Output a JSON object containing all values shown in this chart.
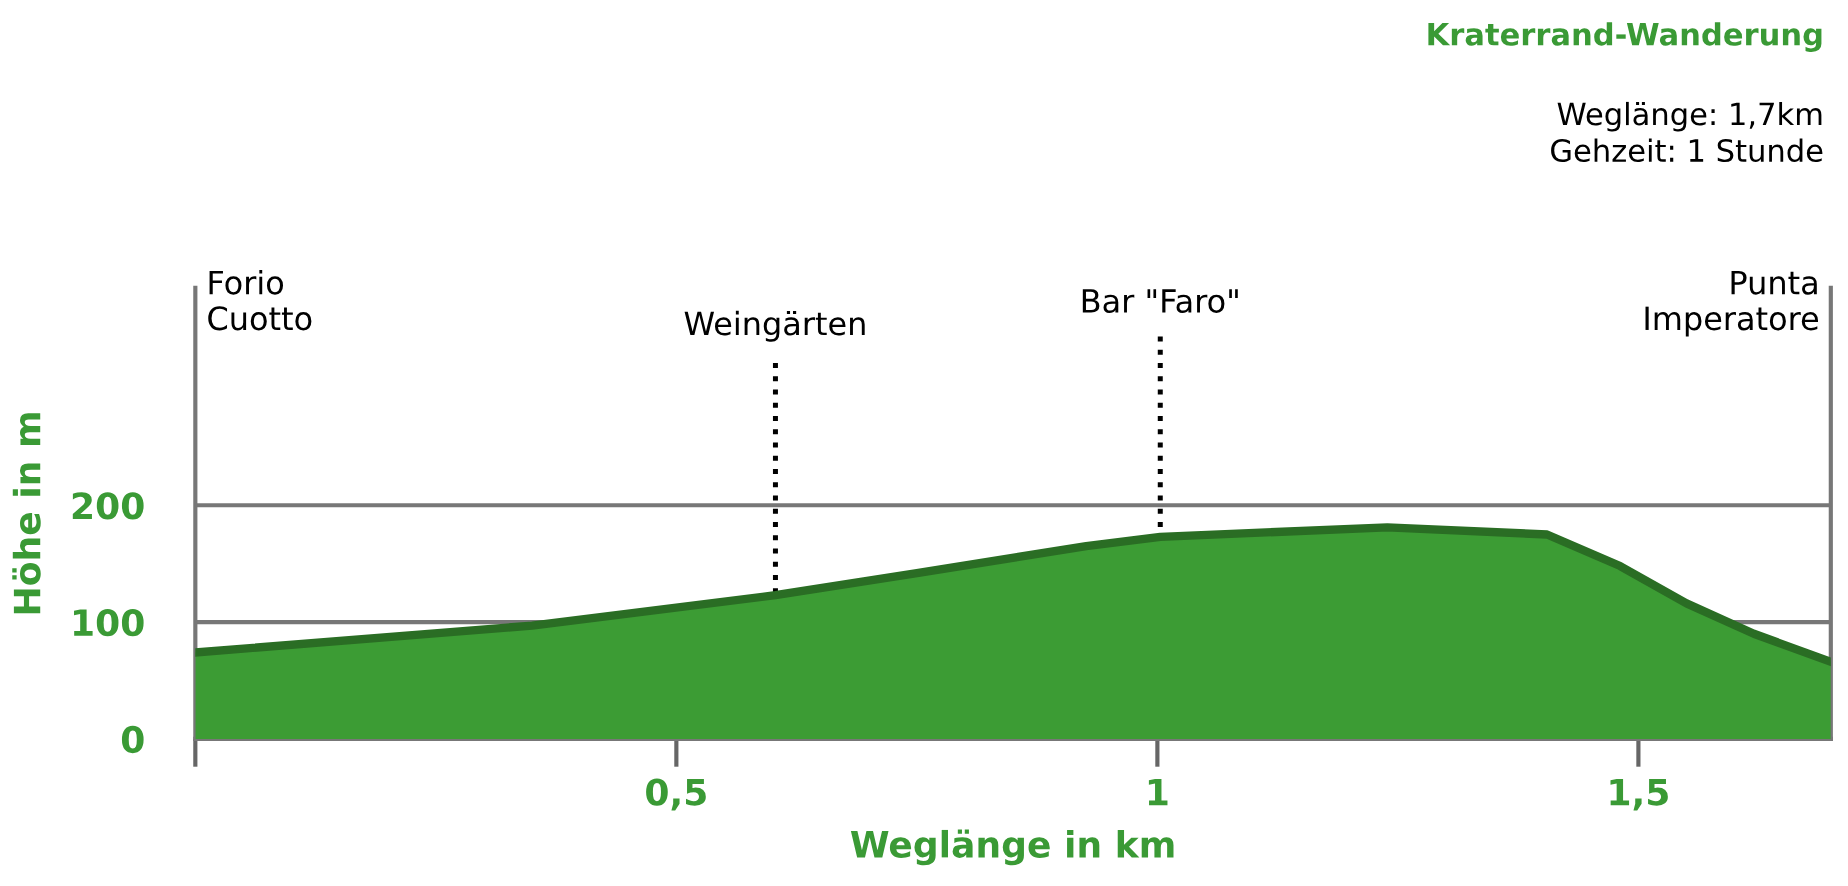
{
  "chart_data": {
    "type": "area",
    "title": "Kraterrand-Wanderung",
    "subtitle": "Weglänge: 1,7km\nGehzeit: 1 Stunde",
    "xlabel": "Weglänge in km",
    "ylabel": "Höhe in m",
    "x": [
      0,
      0.35,
      0.603,
      0.75,
      0.926,
      1.003,
      1.239,
      1.405,
      1.481,
      1.55,
      1.62,
      1.7
    ],
    "series": [
      {
        "color": "#3c9c34",
        "values": [
          74,
          97,
          123,
          142,
          165,
          173,
          181,
          175,
          148,
          116,
          90,
          66
        ]
      }
    ],
    "xlim": [
      0,
      1.7
    ],
    "ylim": [
      0,
      386
    ],
    "xticks": [
      {
        "value": 0,
        "label": null
      },
      {
        "value": 0.5,
        "label": "0,5"
      },
      {
        "value": 1,
        "label": "1"
      },
      {
        "value": 1.5,
        "label": "1,5"
      }
    ],
    "yticks": [
      0,
      100,
      200
    ],
    "grid": "y",
    "ref_lines": [
      {
        "axis": "x",
        "value": 0.603,
        "label": "Weingärten",
        "line_style": "dotted",
        "color": "#000000"
      },
      {
        "axis": "x",
        "value": 1.003,
        "label": "Bar \"Faro\"",
        "line_style": "dotted",
        "color": "#000000"
      }
    ],
    "annotations": [
      "Forio\nCuotto",
      "Punta\nImperatore"
    ]
  }
}
